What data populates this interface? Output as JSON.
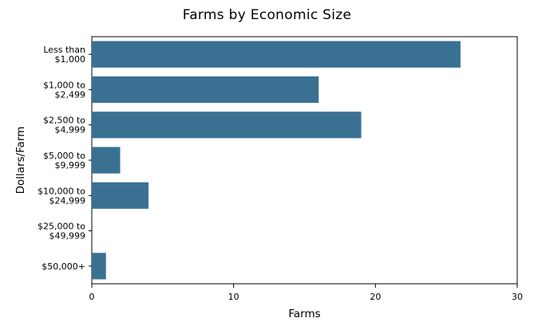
{
  "chart_data": {
    "type": "bar",
    "orientation": "horizontal",
    "title": "Farms by Economic Size",
    "xlabel": "Farms",
    "ylabel": "Dollars/Farm",
    "categories": [
      [
        "Less than",
        "$1,000"
      ],
      [
        "$1,000 to",
        "$2,499"
      ],
      [
        "$2,500 to",
        "$4,999"
      ],
      [
        "$5,000 to",
        "$9,999"
      ],
      [
        "$10,000 to",
        "$24,999"
      ],
      [
        "$25,000 to",
        "$49,999"
      ],
      [
        "$50,000+"
      ]
    ],
    "values": [
      26,
      16,
      19,
      2,
      4,
      0,
      1
    ],
    "xlim": [
      0,
      30
    ],
    "xticks": [
      0,
      10,
      20,
      30
    ],
    "grid": false,
    "bar_color": "#3a7193"
  }
}
